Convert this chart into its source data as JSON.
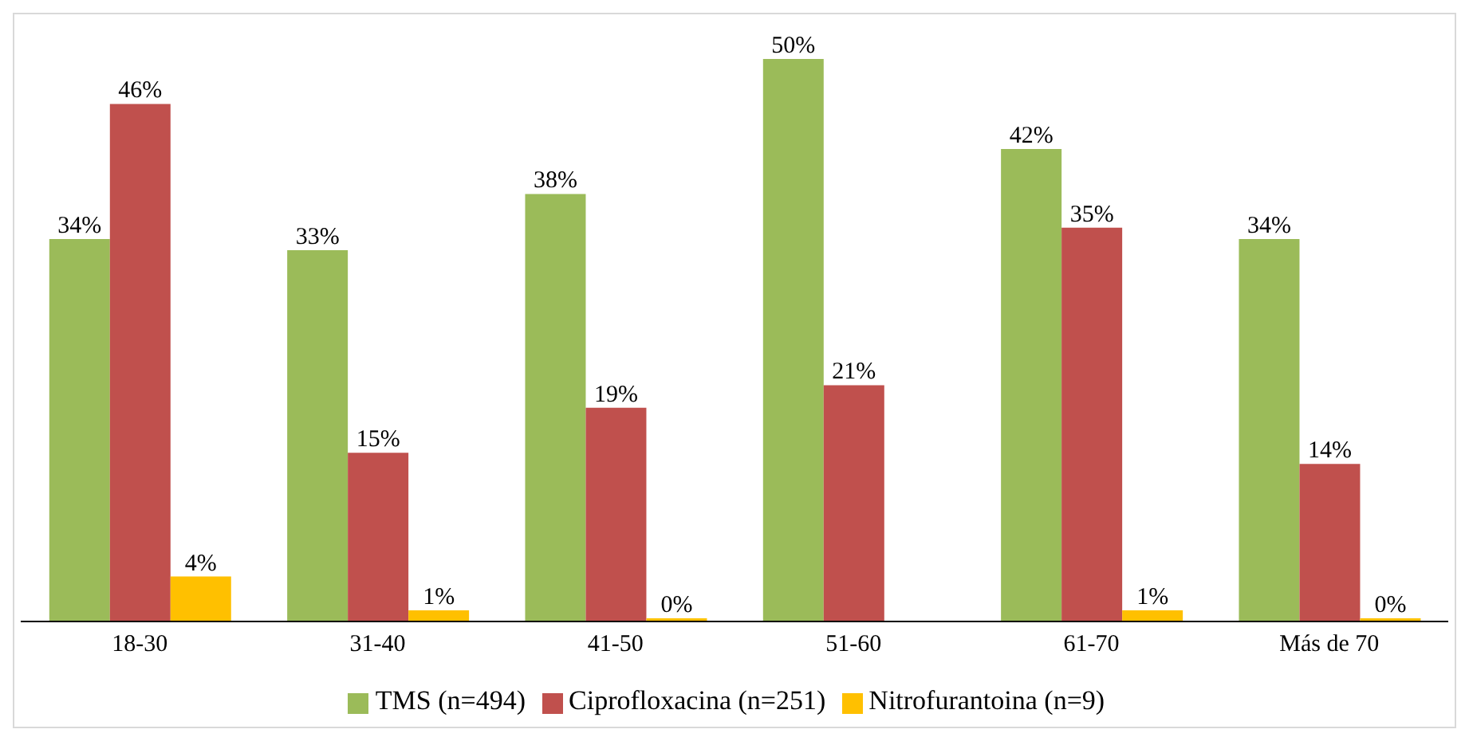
{
  "chart_data": {
    "type": "bar",
    "categories": [
      "18-30",
      "31-40",
      "41-50",
      "51-60",
      "61-70",
      "Más de 70"
    ],
    "series": [
      {
        "name": "TMS (n=494)",
        "color": "#9bbb59",
        "values": [
          34,
          33,
          38,
          50,
          42,
          34
        ],
        "value_labels": [
          "34%",
          "33%",
          "38%",
          "50%",
          "42%",
          "34%"
        ]
      },
      {
        "name": "Ciprofloxacina (n=251)",
        "color": "#c0504d",
        "values": [
          46,
          15,
          19,
          21,
          35,
          14
        ],
        "value_labels": [
          "46%",
          "15%",
          "19%",
          "21%",
          "35%",
          "14%"
        ]
      },
      {
        "name": "Nitrofurantoina (n=9)",
        "color": "#ffc000",
        "values": [
          4,
          1,
          0,
          null,
          1,
          0
        ],
        "value_labels": [
          "4%",
          "1%",
          "0%",
          null,
          "1%",
          "0%"
        ]
      }
    ],
    "grid": false,
    "legend": "bottom"
  }
}
